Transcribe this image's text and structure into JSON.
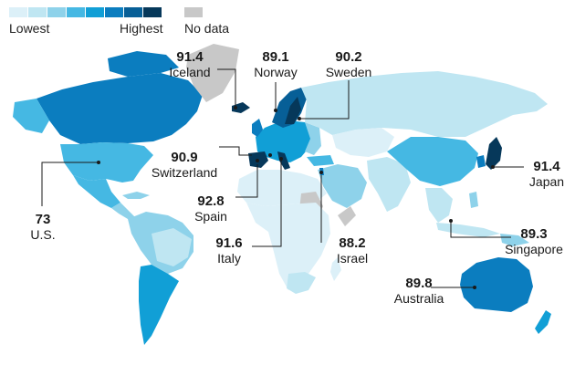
{
  "legend": {
    "low_label": "Lowest",
    "high_label": "Highest",
    "nodata_label": "No data",
    "scale_colors": [
      "#dcf0f8",
      "#bfe6f2",
      "#8ed2ea",
      "#45b8e3",
      "#119fd6",
      "#0b7dbf",
      "#075f97",
      "#06385a"
    ],
    "nodata_color": "#c8c8c8"
  },
  "callouts": [
    {
      "value": "91.4",
      "country": "Iceland"
    },
    {
      "value": "89.1",
      "country": "Norway"
    },
    {
      "value": "90.2",
      "country": "Sweden"
    },
    {
      "value": "90.9",
      "country": "Switzerland"
    },
    {
      "value": "92.8",
      "country": "Spain"
    },
    {
      "value": "91.6",
      "country": "Italy"
    },
    {
      "value": "88.2",
      "country": "Israel"
    },
    {
      "value": "73",
      "country": "U.S."
    },
    {
      "value": "91.4",
      "country": "Japan"
    },
    {
      "value": "89.3",
      "country": "Singapore"
    },
    {
      "value": "89.8",
      "country": "Australia"
    }
  ]
}
